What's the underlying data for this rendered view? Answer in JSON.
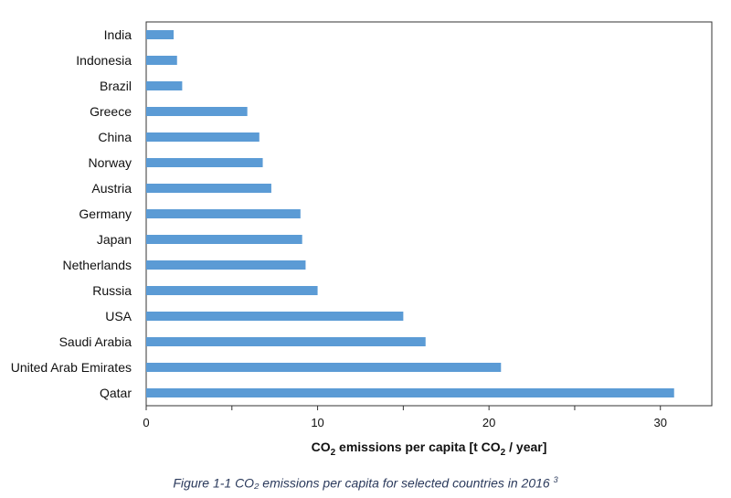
{
  "chart_data": {
    "type": "bar",
    "orientation": "horizontal",
    "categories": [
      "India",
      "Indonesia",
      "Brazil",
      "Greece",
      "China",
      "Norway",
      "Austria",
      "Germany",
      "Japan",
      "Netherlands",
      "Russia",
      "USA",
      "Saudi Arabia",
      "United Arab Emirates",
      "Qatar"
    ],
    "values": [
      1.6,
      1.8,
      2.1,
      5.9,
      6.6,
      6.8,
      7.3,
      9.0,
      9.1,
      9.3,
      10.0,
      15.0,
      16.3,
      20.7,
      30.8
    ],
    "xlim": [
      0,
      33
    ],
    "xticks": [
      "0",
      "10",
      "20",
      "30"
    ],
    "xlabel": {
      "pre": "CO",
      "sub": "2",
      "mid": " emissions per capita [t CO",
      "sub2": "2",
      "post": " / year]"
    },
    "bar_color": "#5b9bd5",
    "grid": false
  },
  "caption": {
    "text": "Figure 1-1 CO₂ emissions per capita for selected countries in 2016",
    "ref": "3"
  }
}
